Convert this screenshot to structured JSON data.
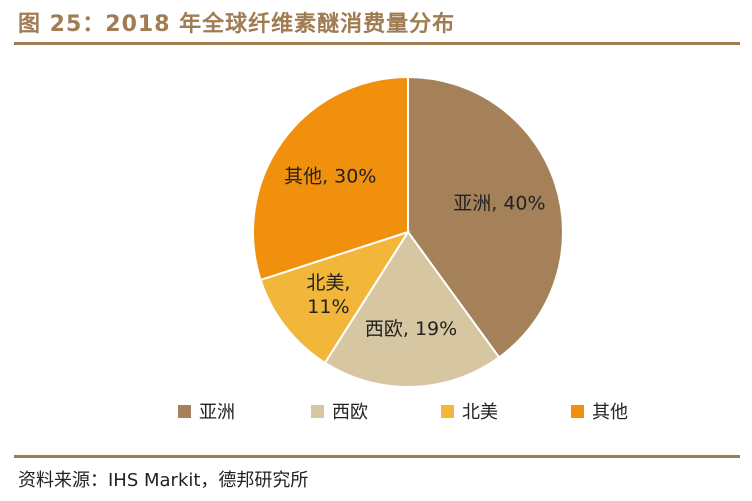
{
  "header": {
    "title": "图 25：2018 年全球纤维素醚消费量分布"
  },
  "footer": {
    "source": "资料来源：IHS Markit，德邦研究所"
  },
  "chart_data": {
    "type": "pie",
    "categories": [
      "亚洲",
      "西欧",
      "北美",
      "其他"
    ],
    "values": [
      40,
      19,
      11,
      30
    ],
    "unit": "%",
    "colors": [
      "#a5815a",
      "#d6c6a1",
      "#f2b73a",
      "#f0900d"
    ],
    "slice_labels": [
      [
        "亚洲, 40%"
      ],
      [
        "西欧, 19%"
      ],
      [
        "北美,",
        "11%"
      ],
      [
        "其他, 30%"
      ]
    ],
    "legend_position": "bottom",
    "start": "12 o'clock, clockwise"
  }
}
